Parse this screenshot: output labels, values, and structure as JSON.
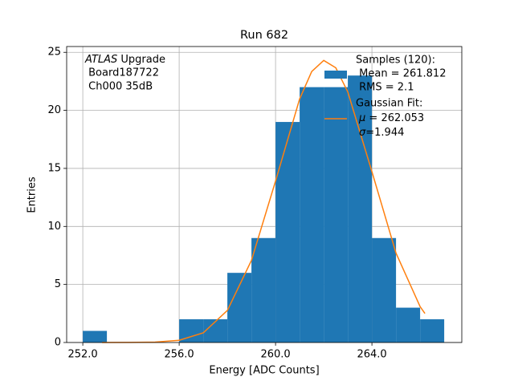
{
  "chart_data": {
    "type": "histogram",
    "title": "Run 682",
    "x_label": "Energy [ADC Counts]",
    "y_label": "Entries",
    "annotation": {
      "experiment": "ATLAS",
      "tag": " Upgrade",
      "lines": [
        " Board187722",
        " Ch000 35dB"
      ]
    },
    "bins": [
      252,
      253,
      254,
      255,
      256,
      257,
      258,
      259,
      260,
      261,
      262,
      263,
      264,
      265,
      266,
      267
    ],
    "counts": [
      1,
      0,
      0,
      0,
      2,
      2,
      6,
      9,
      19,
      22,
      22,
      23,
      9,
      3,
      2
    ],
    "color": "#1f77b4",
    "legend_lines": [
      "Samples (120):",
      " Mean = 261.812",
      " RMS = 2.1"
    ],
    "fit": {
      "type": "line",
      "color": "#ff7f0e",
      "legend_title": "Gaussian Fit:",
      "legend_mu_symbol": "μ",
      "legend_mu": " = 262.053",
      "legend_sigma_symbol": "σ",
      "legend_sigma": "=1.944",
      "x": [
        252.8,
        254,
        255,
        256,
        257,
        258,
        259,
        260,
        261,
        261.5,
        262,
        262.5,
        263,
        264,
        265,
        266,
        266.2
      ],
      "values": [
        0.0003,
        0.005,
        0.034,
        0.19,
        0.83,
        2.76,
        7.08,
        13.91,
        20.99,
        23.34,
        24.3,
        23.67,
        21.58,
        14.72,
        7.7,
        3.09,
        2.5
      ]
    },
    "xlim": [
      251.33,
      267.73
    ],
    "ylim": [
      0,
      25.5
    ],
    "xticks": [
      {
        "value": 252,
        "label": "252.0"
      },
      {
        "value": 256,
        "label": "256.0"
      },
      {
        "value": 260,
        "label": "260.0"
      },
      {
        "value": 264,
        "label": "264.0"
      }
    ],
    "yticks": [
      0,
      5,
      10,
      15,
      20,
      25
    ],
    "grid": true
  }
}
